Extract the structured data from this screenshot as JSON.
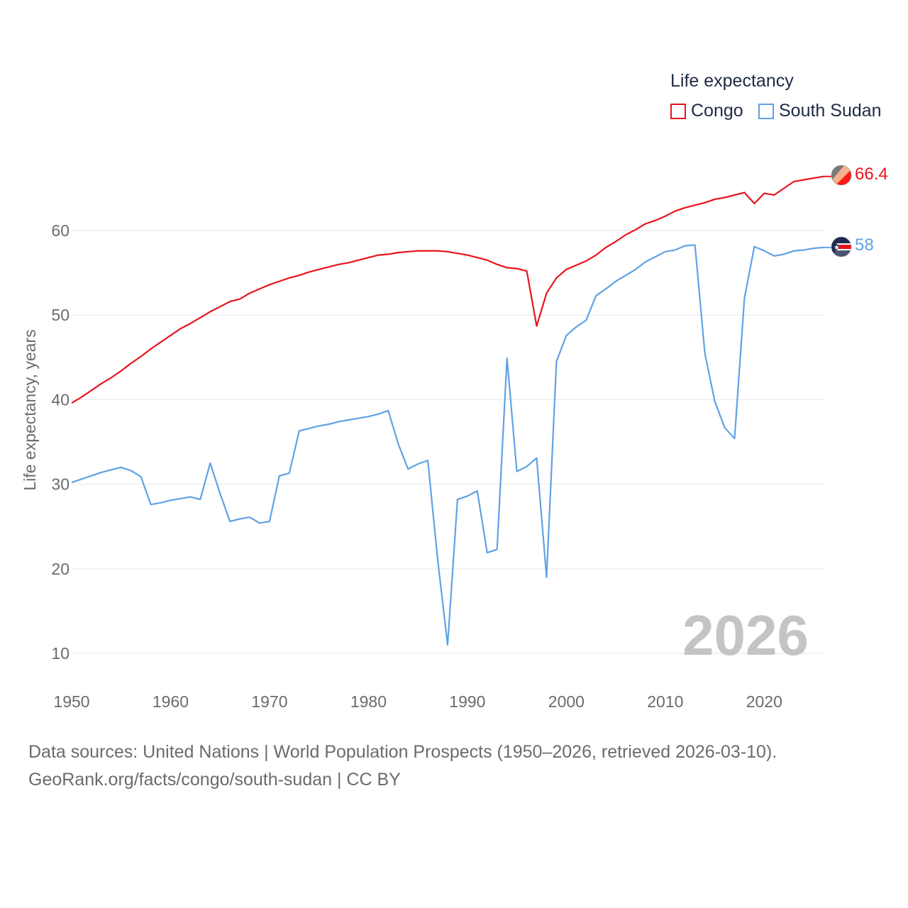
{
  "chart_data": {
    "type": "line",
    "title": "",
    "ylabel": "Life expectancy, years",
    "xlabel": "",
    "xlim": [
      1950,
      2026
    ],
    "ylim": [
      10,
      70
    ],
    "y_ticks": [
      10,
      20,
      30,
      40,
      50,
      60
    ],
    "x_ticks": [
      1950,
      1960,
      1970,
      1980,
      1990,
      2000,
      2010,
      2020
    ],
    "grid": true,
    "legend": {
      "title": "Life expectancy",
      "placement": "top-right"
    },
    "current_year": "2026",
    "series": [
      {
        "name": "Congo",
        "color": "#e8141b",
        "end_label": "66.4",
        "x": [
          1950,
          1951,
          1952,
          1953,
          1954,
          1955,
          1956,
          1957,
          1958,
          1959,
          1960,
          1961,
          1962,
          1963,
          1964,
          1965,
          1966,
          1967,
          1968,
          1969,
          1970,
          1971,
          1972,
          1973,
          1974,
          1975,
          1976,
          1977,
          1978,
          1979,
          1980,
          1981,
          1982,
          1983,
          1984,
          1985,
          1986,
          1987,
          1988,
          1989,
          1990,
          1991,
          1992,
          1993,
          1994,
          1995,
          1996,
          1997,
          1998,
          1999,
          2000,
          2001,
          2002,
          2003,
          2004,
          2005,
          2006,
          2007,
          2008,
          2009,
          2010,
          2011,
          2012,
          2013,
          2014,
          2015,
          2016,
          2017,
          2018,
          2019,
          2020,
          2021,
          2022,
          2023,
          2024,
          2025,
          2026
        ],
        "values": [
          39.6,
          40.3,
          41.1,
          41.9,
          42.6,
          43.4,
          44.3,
          45.1,
          46.0,
          46.8,
          47.6,
          48.4,
          49.0,
          49.7,
          50.4,
          51.0,
          51.6,
          51.9,
          52.6,
          53.1,
          53.6,
          54.0,
          54.4,
          54.7,
          55.1,
          55.4,
          55.7,
          56.0,
          56.2,
          56.5,
          56.8,
          57.1,
          57.2,
          57.4,
          57.5,
          57.6,
          57.6,
          57.6,
          57.5,
          57.3,
          57.1,
          56.8,
          56.5,
          56.0,
          55.6,
          55.5,
          55.2,
          48.7,
          52.6,
          54.4,
          55.4,
          55.9,
          56.4,
          57.1,
          58.0,
          58.7,
          59.5,
          60.1,
          60.8,
          61.2,
          61.7,
          62.3,
          62.7,
          63.0,
          63.3,
          63.7,
          63.9,
          64.2,
          64.5,
          63.2,
          64.4,
          64.2,
          65.0,
          65.8,
          66.0,
          66.2,
          66.4
        ]
      },
      {
        "name": "South Sudan",
        "color": "#5fa2e4",
        "end_label": "58",
        "x": [
          1950,
          1951,
          1952,
          1953,
          1954,
          1955,
          1956,
          1957,
          1958,
          1959,
          1960,
          1961,
          1962,
          1963,
          1964,
          1965,
          1966,
          1967,
          1968,
          1969,
          1970,
          1971,
          1972,
          1973,
          1974,
          1975,
          1976,
          1977,
          1978,
          1979,
          1980,
          1981,
          1982,
          1983,
          1984,
          1985,
          1986,
          1987,
          1988,
          1989,
          1990,
          1991,
          1992,
          1993,
          1994,
          1995,
          1996,
          1997,
          1998,
          1999,
          2000,
          2001,
          2002,
          2003,
          2004,
          2005,
          2006,
          2007,
          2008,
          2009,
          2010,
          2011,
          2012,
          2013,
          2014,
          2015,
          2016,
          2017,
          2018,
          2019,
          2020,
          2021,
          2022,
          2023,
          2024,
          2025,
          2026
        ],
        "values": [
          30.2,
          30.6,
          31.0,
          31.4,
          31.7,
          32.0,
          31.6,
          30.9,
          27.6,
          27.8,
          28.1,
          28.3,
          28.5,
          28.2,
          32.5,
          28.9,
          25.6,
          25.9,
          26.1,
          25.4,
          25.6,
          31.0,
          31.3,
          36.3,
          36.6,
          36.9,
          37.1,
          37.4,
          37.6,
          37.8,
          38.0,
          38.3,
          38.7,
          34.8,
          31.8,
          32.4,
          32.8,
          21.0,
          11.0,
          28.2,
          28.6,
          29.2,
          21.9,
          22.3,
          44.9,
          31.5,
          32.1,
          33.1,
          19.0,
          44.5,
          47.6,
          48.6,
          49.4,
          52.3,
          53.1,
          54.0,
          54.7,
          55.4,
          56.3,
          56.9,
          57.5,
          57.7,
          58.2,
          58.3,
          45.5,
          39.8,
          36.7,
          35.4,
          52.0,
          58.1,
          57.6,
          57.0,
          57.2,
          57.6,
          57.7,
          57.9,
          58.0
        ]
      }
    ]
  },
  "footer": {
    "line1": "Data sources: United Nations | World Population Prospects (1950–2026, retrieved 2026-03-10).",
    "line2": "GeoRank.org/facts/congo/south-sudan | CC BY"
  }
}
